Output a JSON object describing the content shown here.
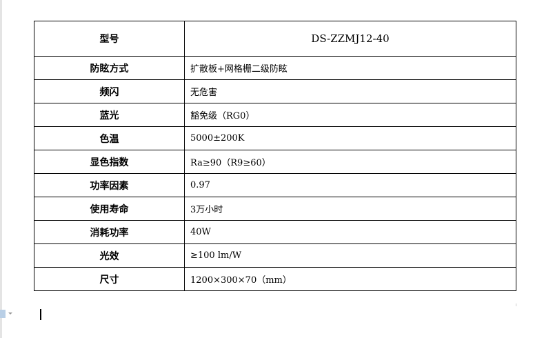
{
  "table": {
    "header": {
      "key": "型号",
      "value": "DS-ZZMJ12-40"
    },
    "rows": [
      {
        "key": "防眩方式",
        "value": "扩散板+网格栅二级防眩"
      },
      {
        "key": "频闪",
        "value": "无危害"
      },
      {
        "key": "蓝光",
        "value": "豁免级（RG0）"
      },
      {
        "key": "色温",
        "value": "5000±200K"
      },
      {
        "key": "显色指数",
        "value": "Ra≥90（R9≥60）"
      },
      {
        "key": "功率因素",
        "value": "0.97"
      },
      {
        "key": "使用寿命",
        "value": "3万小时"
      },
      {
        "key": "消耗功率",
        "value": "40W"
      },
      {
        "key": "光效",
        "value": "≥100 lm/W"
      },
      {
        "key": "尺寸",
        "value": "1200×300×70（mm）"
      }
    ]
  }
}
